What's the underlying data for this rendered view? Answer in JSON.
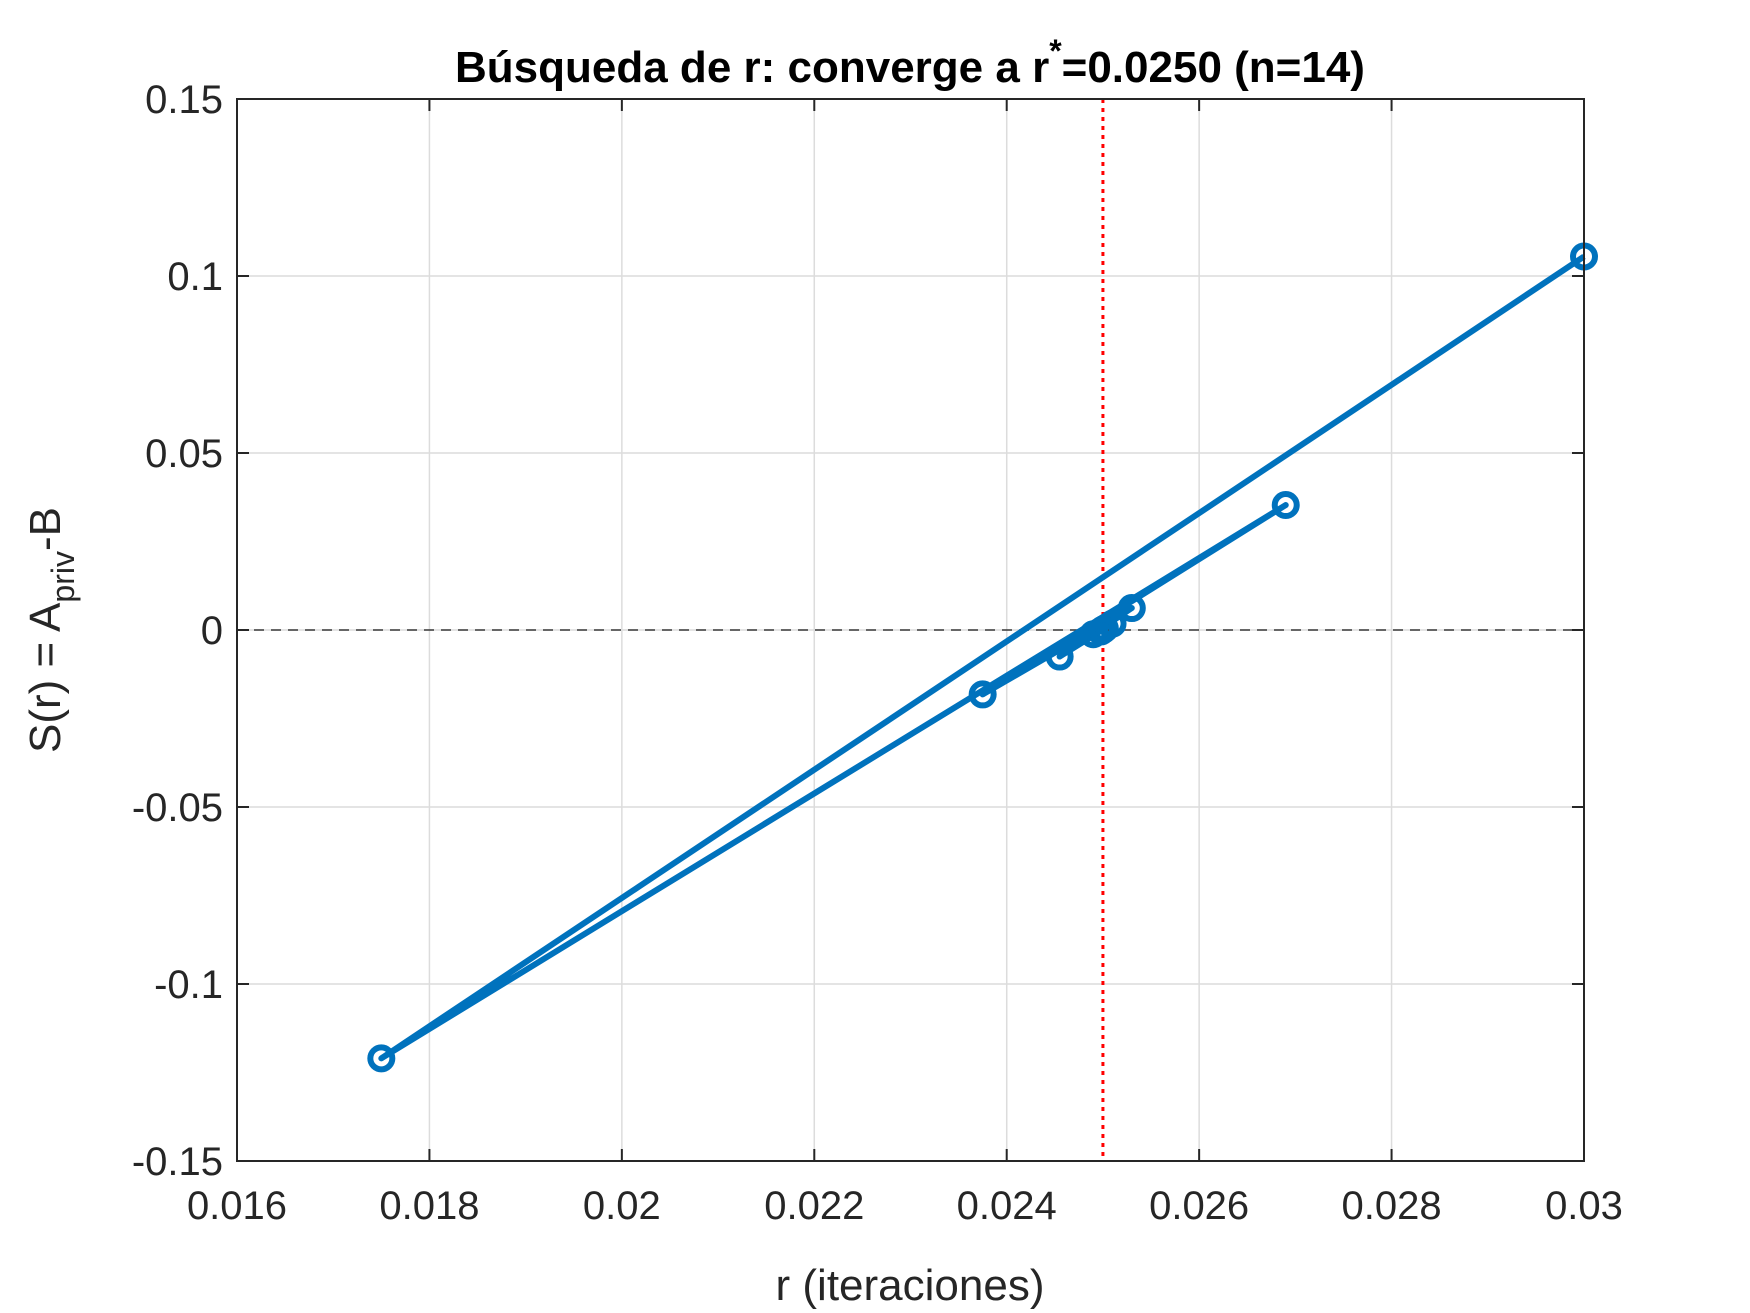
{
  "chart_data": {
    "type": "line",
    "title": {
      "pre": "Búsqueda de r: converge a r",
      "sup": "*",
      "post": "=0.0250 (n=14)"
    },
    "xlabel": "r (iteraciones)",
    "ylabel": {
      "pre": "S(r) = A",
      "sub": "priv",
      "post": "-B"
    },
    "xlim": [
      0.016,
      0.03
    ],
    "ylim": [
      -0.15,
      0.15
    ],
    "x_ticks": [
      0.016,
      0.018,
      0.02,
      0.022,
      0.024,
      0.026,
      0.028,
      0.03
    ],
    "x_tick_labels": [
      "0.016",
      "0.018",
      "0.02",
      "0.022",
      "0.024",
      "0.026",
      "0.028",
      "0.03"
    ],
    "y_ticks": [
      -0.15,
      -0.1,
      -0.05,
      0,
      0.05,
      0.1,
      0.15
    ],
    "y_tick_labels": [
      "-0.15",
      "-0.1",
      "-0.05",
      "0",
      "0.05",
      "0.1",
      "0.15"
    ],
    "grid": true,
    "series": [
      {
        "color": "#0072BD",
        "marker": "circle",
        "x": [
          0.03,
          0.0175,
          0.0269,
          0.02375,
          0.0253,
          0.02455,
          0.0251,
          0.0249,
          0.02502,
          0.02498,
          0.025,
          0.025,
          0.025,
          0.025
        ],
        "y": [
          0.1055,
          -0.121,
          0.0353,
          -0.0182,
          0.0062,
          -0.0075,
          0.0018,
          -0.0012,
          0.0004,
          -0.0004,
          0.0001,
          0.0,
          0.0,
          0.0
        ]
      }
    ],
    "reference_lines": [
      {
        "orientation": "vertical",
        "x": 0.025,
        "color": "#FF0000",
        "style": "dotted"
      },
      {
        "orientation": "horizontal",
        "y": 0,
        "color": "#000000",
        "style": "dashed"
      }
    ]
  }
}
